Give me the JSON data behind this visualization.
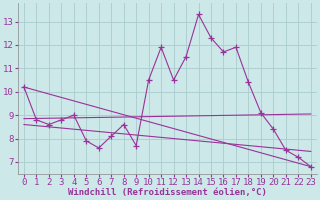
{
  "x": [
    0,
    1,
    2,
    3,
    4,
    5,
    6,
    7,
    8,
    9,
    10,
    11,
    12,
    13,
    14,
    15,
    16,
    17,
    18,
    19,
    20,
    21,
    22,
    23
  ],
  "line_main": [
    10.2,
    8.8,
    8.6,
    8.8,
    9.0,
    7.9,
    7.6,
    8.1,
    8.6,
    7.7,
    10.5,
    11.9,
    10.5,
    11.5,
    13.3,
    12.3,
    11.7,
    11.9,
    10.4,
    9.1,
    8.4,
    7.5,
    7.2,
    6.8
  ],
  "trend1_x": [
    0,
    23
  ],
  "trend1_y": [
    10.2,
    6.8
  ],
  "trend2_x": [
    0,
    23
  ],
  "trend2_y": [
    8.85,
    9.05
  ],
  "trend3_x": [
    0,
    23
  ],
  "trend3_y": [
    8.6,
    7.45
  ],
  "background_color": "#cce8e8",
  "grid_color": "#aacccc",
  "line_color": "#993399",
  "xlabel": "Windchill (Refroidissement éolien,°C)",
  "yticks": [
    7,
    8,
    9,
    10,
    11,
    12,
    13
  ],
  "ylim": [
    6.5,
    13.8
  ],
  "xlim": [
    -0.5,
    23.5
  ],
  "tick_fontsize": 6.5,
  "xlabel_fontsize": 6.5
}
